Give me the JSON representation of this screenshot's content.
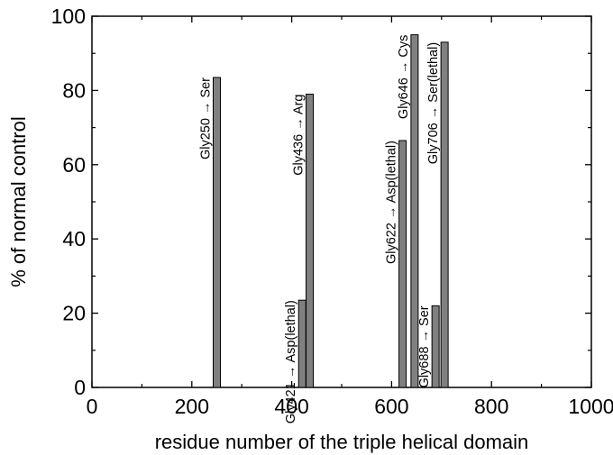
{
  "chart_data": {
    "type": "bar",
    "xlabel": "residue number of the triple helical domain",
    "ylabel": "% of normal control",
    "xlim": [
      0,
      1000
    ],
    "ylim": [
      0,
      100
    ],
    "xticks": [
      0,
      200,
      400,
      600,
      800,
      1000
    ],
    "yticks": [
      0,
      20,
      40,
      60,
      80,
      100
    ],
    "grid": false,
    "bar_color": "#808080",
    "bars": [
      {
        "x": 250,
        "value": 83.5,
        "label": "Gly250 → Ser"
      },
      {
        "x": 421,
        "value": 23.5,
        "label": "Gly421 → Asp(lethal)"
      },
      {
        "x": 436,
        "value": 79,
        "label": "Gly436 → Arg"
      },
      {
        "x": 622,
        "value": 66.5,
        "label": "Gly622 → Asp(lethal)"
      },
      {
        "x": 646,
        "value": 95,
        "label": "Gly646 → Cys"
      },
      {
        "x": 688,
        "value": 22,
        "label": "Gly688 → Ser"
      },
      {
        "x": 706,
        "value": 93,
        "label": "Gly706 → Ser(lethal)"
      }
    ]
  }
}
